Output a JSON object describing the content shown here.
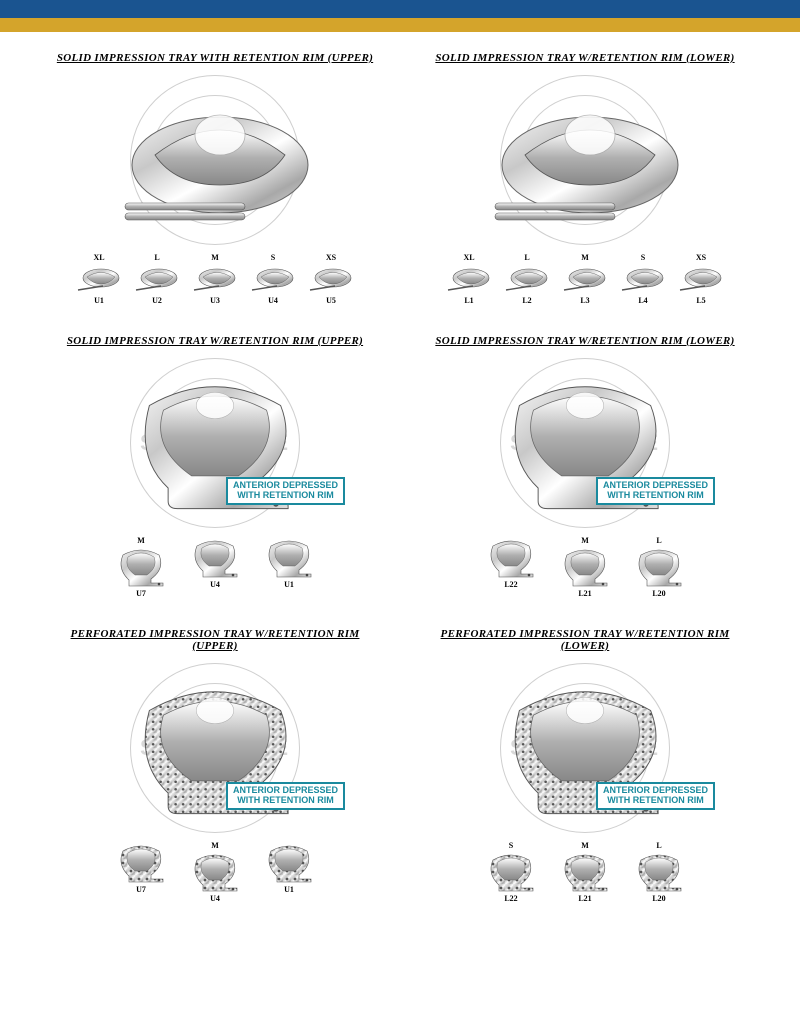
{
  "header": {
    "top_bar_color": "#1a5490",
    "gold_bar_color": "#d4a42b"
  },
  "watermark": {
    "brand_initials": "SI",
    "brand_name": "SURGICOSE",
    "ring_text": "QUALITY MEDICAL INSTRUMENTS"
  },
  "callout_text_line1": "ANTERIOR DEPRESSED",
  "callout_text_line2": "WITH RETENTION RIM",
  "products": [
    {
      "title": "SOLID IMPRESSION TRAY WITH RETENTION RIM (UPPER)",
      "has_callout": false,
      "variants": [
        {
          "size": "XL",
          "code": "U1"
        },
        {
          "size": "L",
          "code": "U2"
        },
        {
          "size": "M",
          "code": "U3"
        },
        {
          "size": "S",
          "code": "U4"
        },
        {
          "size": "XS",
          "code": "U5"
        }
      ]
    },
    {
      "title": "SOLID IMPRESSION TRAY W/RETENTION RIM (LOWER)",
      "has_callout": false,
      "variants": [
        {
          "size": "XL",
          "code": "L1"
        },
        {
          "size": "L",
          "code": "L2"
        },
        {
          "size": "M",
          "code": "L3"
        },
        {
          "size": "S",
          "code": "L4"
        },
        {
          "size": "XS",
          "code": "L5"
        }
      ]
    },
    {
      "title": "SOLID IMPRESSION TRAY W/RETENTION RIM (UPPER)",
      "has_callout": true,
      "variants": [
        {
          "size": "M",
          "code": "U7"
        },
        {
          "size": "",
          "code": "U4"
        },
        {
          "size": "",
          "code": "U1"
        }
      ]
    },
    {
      "title": "SOLID IMPRESSION TRAY W/RETENTION RIM (LOWER)",
      "has_callout": true,
      "variants": [
        {
          "size": "",
          "code": "L22"
        },
        {
          "size": "M",
          "code": "L21"
        },
        {
          "size": "L",
          "code": "L20"
        }
      ]
    },
    {
      "title": "PERFORATED IMPRESSION TRAY W/RETENTION RIM (UPPER)",
      "has_callout": true,
      "variants": [
        {
          "size": "",
          "code": "U7"
        },
        {
          "size": "M",
          "code": "U4"
        },
        {
          "size": "",
          "code": "U1"
        }
      ]
    },
    {
      "title": "PERFORATED IMPRESSION TRAY W/RETENTION RIM (LOWER)",
      "has_callout": true,
      "variants": [
        {
          "size": "S",
          "code": "L22"
        },
        {
          "size": "M",
          "code": "L21"
        },
        {
          "size": "L",
          "code": "L20"
        }
      ]
    }
  ]
}
